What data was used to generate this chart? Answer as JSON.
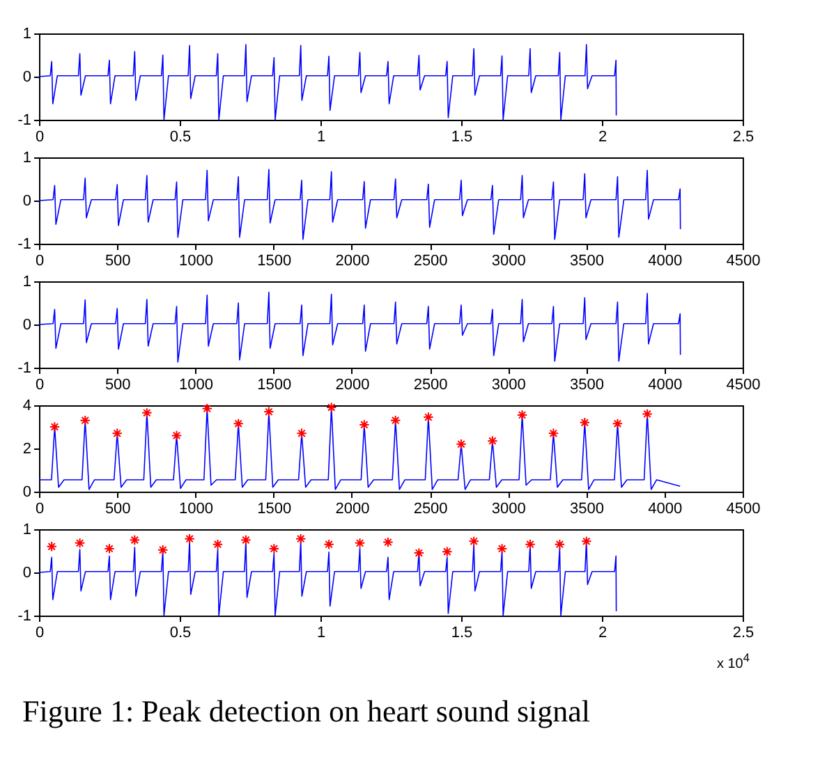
{
  "chart_data": [
    {
      "type": "line",
      "xlim": [
        0,
        2.5
      ],
      "xticks": [
        0,
        0.5,
        1,
        1.5,
        2,
        2.5
      ],
      "ylim": [
        -1,
        1
      ],
      "yticks": [
        -1,
        0,
        1
      ],
      "grid": false,
      "line_style": "solid",
      "x": [
        0,
        0.04,
        0.045,
        0.049,
        0.065,
        0.14,
        0.145,
        0.149,
        0.165,
        0.245,
        0.25,
        0.254,
        0.27,
        0.335,
        0.34,
        0.344,
        0.36,
        0.435,
        0.44,
        0.444,
        0.46,
        0.53,
        0.535,
        0.539,
        0.555,
        0.63,
        0.635,
        0.639,
        0.655,
        0.73,
        0.735,
        0.739,
        0.755,
        0.83,
        0.835,
        0.839,
        0.855,
        0.925,
        0.93,
        0.934,
        0.95,
        1.025,
        1.03,
        1.034,
        1.05,
        1.135,
        1.14,
        1.144,
        1.16,
        1.235,
        1.24,
        1.244,
        1.26,
        1.345,
        1.35,
        1.354,
        1.37,
        1.445,
        1.45,
        1.454,
        1.47,
        1.54,
        1.545,
        1.549,
        1.565,
        1.64,
        1.645,
        1.649,
        1.665,
        1.74,
        1.745,
        1.749,
        1.765,
        1.845,
        1.85,
        1.854,
        1.87,
        1.94,
        1.945,
        1.949,
        1.965,
        2.045,
        2.05,
        2.051
      ],
      "series": [
        {
          "color": "#0000ff",
          "values": [
            0,
            0.02,
            0.35,
            -0.63,
            0.02,
            0.02,
            0.53,
            -0.43,
            0.02,
            0.02,
            0.38,
            -0.63,
            0.02,
            0.02,
            0.58,
            -0.55,
            0.02,
            0.02,
            0.5,
            -1,
            0.02,
            0.02,
            0.72,
            -0.51,
            0.02,
            0.02,
            0.53,
            -1,
            0.02,
            0.02,
            0.74,
            -0.58,
            0.02,
            0.02,
            0.44,
            -1,
            0.02,
            0.02,
            0.72,
            -0.55,
            0.02,
            0.02,
            0.47,
            -0.78,
            0.02,
            0.02,
            0.56,
            -0.37,
            0.02,
            0.02,
            0.35,
            -0.63,
            0.02,
            0.02,
            0.49,
            -0.31,
            0.02,
            0.02,
            0.35,
            -0.95,
            0.02,
            0.02,
            0.65,
            -0.43,
            0.02,
            0.02,
            0.48,
            -1,
            0.02,
            0.02,
            0.65,
            -0.37,
            0.02,
            0.02,
            0.56,
            -1,
            0.02,
            0.02,
            0.74,
            -0.28,
            0.02,
            0.02,
            0.38,
            -0.9
          ]
        }
      ]
    },
    {
      "type": "line",
      "xlim": [
        0,
        4500
      ],
      "xticks": [
        0,
        500,
        1000,
        1500,
        2000,
        2500,
        3000,
        3500,
        4000,
        4500
      ],
      "ylim": [
        -1,
        1
      ],
      "yticks": [
        -1,
        0,
        1
      ],
      "grid": false,
      "line_style": "solid",
      "x": [
        0,
        90,
        100,
        108,
        140,
        285,
        295,
        303,
        335,
        490,
        500,
        508,
        540,
        680,
        690,
        698,
        730,
        870,
        880,
        888,
        920,
        1065,
        1075,
        1083,
        1115,
        1265,
        1275,
        1283,
        1315,
        1460,
        1470,
        1478,
        1510,
        1670,
        1680,
        1688,
        1720,
        1860,
        1870,
        1878,
        1910,
        2070,
        2080,
        2088,
        2120,
        2270,
        2280,
        2288,
        2320,
        2480,
        2490,
        2498,
        2530,
        2690,
        2700,
        2708,
        2740,
        2890,
        2900,
        2908,
        2940,
        3080,
        3090,
        3098,
        3130,
        3280,
        3290,
        3298,
        3330,
        3480,
        3490,
        3498,
        3530,
        3690,
        3700,
        3708,
        3740,
        3880,
        3890,
        3898,
        3930,
        4090,
        4100,
        4102
      ],
      "series": [
        {
          "color": "#0000ff",
          "values": [
            0,
            0.02,
            0.35,
            -0.55,
            0.02,
            0.02,
            0.52,
            -0.4,
            0.02,
            0.02,
            0.37,
            -0.58,
            0.02,
            0.02,
            0.58,
            -0.5,
            0.02,
            0.02,
            0.43,
            -0.85,
            0.02,
            0.02,
            0.7,
            -0.47,
            0.02,
            0.02,
            0.55,
            -0.85,
            0.02,
            0.02,
            0.72,
            -0.52,
            0.02,
            0.02,
            0.47,
            -0.9,
            0.02,
            0.02,
            0.67,
            -0.5,
            0.02,
            0.02,
            0.44,
            -0.64,
            0.02,
            0.02,
            0.5,
            -0.4,
            0.02,
            0.02,
            0.38,
            -0.62,
            0.02,
            0.02,
            0.47,
            -0.35,
            0.02,
            0.02,
            0.35,
            -0.78,
            0.02,
            0.02,
            0.58,
            -0.4,
            0.02,
            0.02,
            0.43,
            -0.9,
            0.02,
            0.02,
            0.62,
            -0.4,
            0.02,
            0.02,
            0.55,
            -0.85,
            0.02,
            0.02,
            0.7,
            -0.43,
            0.02,
            0.02,
            0.27,
            -0.66
          ]
        }
      ]
    },
    {
      "type": "line",
      "xlim": [
        0,
        4500
      ],
      "xticks": [
        0,
        500,
        1000,
        1500,
        2000,
        2500,
        3000,
        3500,
        4000,
        4500
      ],
      "ylim": [
        -1,
        1
      ],
      "yticks": [
        -1,
        0,
        1
      ],
      "grid": false,
      "line_style": "solid",
      "x": [
        0,
        90,
        100,
        108,
        140,
        285,
        295,
        303,
        335,
        490,
        500,
        508,
        540,
        680,
        690,
        698,
        730,
        870,
        880,
        888,
        920,
        1065,
        1075,
        1083,
        1115,
        1265,
        1275,
        1283,
        1315,
        1460,
        1470,
        1478,
        1510,
        1670,
        1680,
        1688,
        1720,
        1860,
        1870,
        1878,
        1910,
        2070,
        2080,
        2088,
        2120,
        2270,
        2280,
        2288,
        2320,
        2480,
        2490,
        2498,
        2530,
        2690,
        2700,
        2708,
        2740,
        2890,
        2900,
        2908,
        2940,
        3080,
        3090,
        3098,
        3130,
        3280,
        3290,
        3298,
        3330,
        3480,
        3490,
        3498,
        3530,
        3690,
        3700,
        3708,
        3740,
        3880,
        3890,
        3898,
        3930,
        4090,
        4100,
        4102
      ],
      "series": [
        {
          "color": "#0000ff",
          "values": [
            0,
            0.02,
            0.35,
            -0.55,
            0.02,
            0.02,
            0.57,
            -0.42,
            0.02,
            0.02,
            0.37,
            -0.57,
            0.02,
            0.02,
            0.58,
            -0.5,
            0.02,
            0.02,
            0.42,
            -0.87,
            0.02,
            0.02,
            0.68,
            -0.5,
            0.02,
            0.02,
            0.5,
            -0.82,
            0.02,
            0.02,
            0.75,
            -0.55,
            0.02,
            0.02,
            0.45,
            -0.72,
            0.02,
            0.02,
            0.7,
            -0.47,
            0.02,
            0.02,
            0.45,
            -0.62,
            0.02,
            0.02,
            0.52,
            -0.45,
            0.02,
            0.02,
            0.42,
            -0.57,
            0.02,
            0.02,
            0.45,
            -0.25,
            0.02,
            0.02,
            0.35,
            -0.72,
            0.02,
            0.02,
            0.58,
            -0.4,
            0.02,
            0.02,
            0.42,
            -0.85,
            0.02,
            0.02,
            0.62,
            -0.35,
            0.02,
            0.02,
            0.52,
            -0.85,
            0.02,
            0.02,
            0.72,
            -0.45,
            0.02,
            0.02,
            0.25,
            -0.7
          ]
        }
      ]
    },
    {
      "type": "line",
      "xlim": [
        0,
        4500
      ],
      "xticks": [
        0,
        500,
        1000,
        1500,
        2000,
        2500,
        3000,
        3500,
        4000,
        4500
      ],
      "ylim": [
        0,
        4
      ],
      "yticks": [
        0,
        2,
        4
      ],
      "grid": false,
      "line_style": "solid",
      "series": [
        {
          "color": "#0000ff",
          "x": [
            0,
            80,
            100,
            125,
            160,
            275,
            295,
            320,
            355,
            480,
            500,
            525,
            560,
            670,
            690,
            715,
            750,
            860,
            880,
            905,
            940,
            1055,
            1075,
            1100,
            1135,
            1255,
            1275,
            1300,
            1335,
            1450,
            1470,
            1495,
            1530,
            1660,
            1680,
            1705,
            1740,
            1850,
            1870,
            1895,
            1930,
            2060,
            2080,
            2105,
            2140,
            2260,
            2280,
            2305,
            2340,
            2470,
            2490,
            2515,
            2550,
            2680,
            2700,
            2725,
            2760,
            2880,
            2900,
            2925,
            2960,
            3070,
            3090,
            3115,
            3150,
            3270,
            3290,
            3315,
            3350,
            3470,
            3490,
            3515,
            3550,
            3680,
            3700,
            3725,
            3760,
            3870,
            3890,
            3915,
            3950,
            4100
          ],
          "values": [
            0.55,
            0.55,
            3.0,
            0.2,
            0.55,
            0.55,
            3.3,
            0.1,
            0.55,
            0.55,
            2.7,
            0.2,
            0.55,
            0.55,
            3.65,
            0.2,
            0.55,
            0.55,
            2.6,
            0.15,
            0.55,
            0.55,
            3.85,
            0.3,
            0.55,
            0.55,
            3.15,
            0.2,
            0.55,
            0.55,
            3.7,
            0.2,
            0.55,
            0.55,
            2.7,
            0.2,
            0.55,
            0.55,
            3.9,
            0.1,
            0.55,
            0.55,
            3.1,
            0.2,
            0.55,
            0.55,
            3.3,
            0.1,
            0.55,
            0.55,
            3.45,
            0.1,
            0.55,
            0.55,
            2.2,
            0.1,
            0.55,
            0.55,
            2.35,
            0.2,
            0.55,
            0.55,
            3.55,
            0.3,
            0.55,
            0.55,
            2.7,
            0.2,
            0.55,
            0.55,
            3.2,
            0.1,
            0.55,
            0.55,
            3.15,
            0.2,
            0.55,
            0.55,
            3.6,
            0.1,
            0.55,
            0.25
          ]
        },
        {
          "type": "scatter",
          "marker": "cross",
          "color": "#ff0000",
          "x": [
            100,
            295,
            500,
            690,
            880,
            1075,
            1275,
            1470,
            1680,
            1870,
            2080,
            2280,
            2490,
            2700,
            2900,
            3090,
            3290,
            3490,
            3700,
            3890
          ],
          "values": [
            3.0,
            3.3,
            2.7,
            3.65,
            2.6,
            3.85,
            3.15,
            3.7,
            2.7,
            3.9,
            3.1,
            3.3,
            3.45,
            2.2,
            2.35,
            3.55,
            2.7,
            3.2,
            3.15,
            3.6
          ]
        }
      ]
    },
    {
      "type": "line",
      "xlim": [
        0,
        2.5
      ],
      "xticks": [
        0,
        0.5,
        1,
        1.5,
        2,
        2.5
      ],
      "ylim": [
        -1,
        1
      ],
      "yticks": [
        -1,
        0,
        1
      ],
      "grid": false,
      "line_style": "solid",
      "annotations": [
        "x 10$^{4}$",
        "Figure 1: Peak detection on heart sound signal"
      ],
      "series": [
        {
          "color": "#0000ff",
          "x": [
            0,
            0.04,
            0.045,
            0.049,
            0.065,
            0.14,
            0.145,
            0.149,
            0.165,
            0.245,
            0.25,
            0.254,
            0.27,
            0.335,
            0.34,
            0.344,
            0.36,
            0.435,
            0.44,
            0.444,
            0.46,
            0.53,
            0.535,
            0.539,
            0.555,
            0.63,
            0.635,
            0.639,
            0.655,
            0.73,
            0.735,
            0.739,
            0.755,
            0.83,
            0.835,
            0.839,
            0.855,
            0.925,
            0.93,
            0.934,
            0.95,
            1.025,
            1.03,
            1.034,
            1.05,
            1.135,
            1.14,
            1.144,
            1.16,
            1.235,
            1.24,
            1.244,
            1.26,
            1.345,
            1.35,
            1.354,
            1.37,
            1.445,
            1.45,
            1.454,
            1.47,
            1.54,
            1.545,
            1.549,
            1.565,
            1.64,
            1.645,
            1.649,
            1.665,
            1.74,
            1.745,
            1.749,
            1.765,
            1.845,
            1.85,
            1.854,
            1.87,
            1.94,
            1.945,
            1.949,
            1.965,
            2.045,
            2.05,
            2.051
          ],
          "values": [
            0,
            0.02,
            0.35,
            -0.63,
            0.02,
            0.02,
            0.53,
            -0.43,
            0.02,
            0.02,
            0.38,
            -0.63,
            0.02,
            0.02,
            0.58,
            -0.55,
            0.02,
            0.02,
            0.5,
            -1,
            0.02,
            0.02,
            0.72,
            -0.51,
            0.02,
            0.02,
            0.53,
            -1,
            0.02,
            0.02,
            0.74,
            -0.58,
            0.02,
            0.02,
            0.44,
            -1,
            0.02,
            0.02,
            0.72,
            -0.55,
            0.02,
            0.02,
            0.47,
            -0.78,
            0.02,
            0.02,
            0.56,
            -0.37,
            0.02,
            0.02,
            0.35,
            -0.63,
            0.02,
            0.02,
            0.49,
            -0.31,
            0.02,
            0.02,
            0.35,
            -0.95,
            0.02,
            0.02,
            0.65,
            -0.43,
            0.02,
            0.02,
            0.48,
            -1,
            0.02,
            0.02,
            0.65,
            -0.37,
            0.02,
            0.02,
            0.56,
            -1,
            0.02,
            0.02,
            0.74,
            -0.28,
            0.02,
            0.02,
            0.38,
            -0.9
          ]
        },
        {
          "type": "scatter",
          "marker": "cross",
          "color": "#ff0000",
          "x": [
            0.045,
            0.145,
            0.25,
            0.34,
            0.44,
            0.535,
            0.635,
            0.735,
            0.835,
            0.93,
            1.03,
            1.14,
            1.24,
            1.35,
            1.45,
            1.545,
            1.645,
            1.745,
            1.85,
            1.945
          ],
          "values": [
            0.6,
            0.68,
            0.55,
            0.75,
            0.52,
            0.78,
            0.65,
            0.75,
            0.55,
            0.78,
            0.65,
            0.68,
            0.7,
            0.45,
            0.48,
            0.72,
            0.55,
            0.65,
            0.65,
            0.72
          ]
        }
      ]
    }
  ]
}
